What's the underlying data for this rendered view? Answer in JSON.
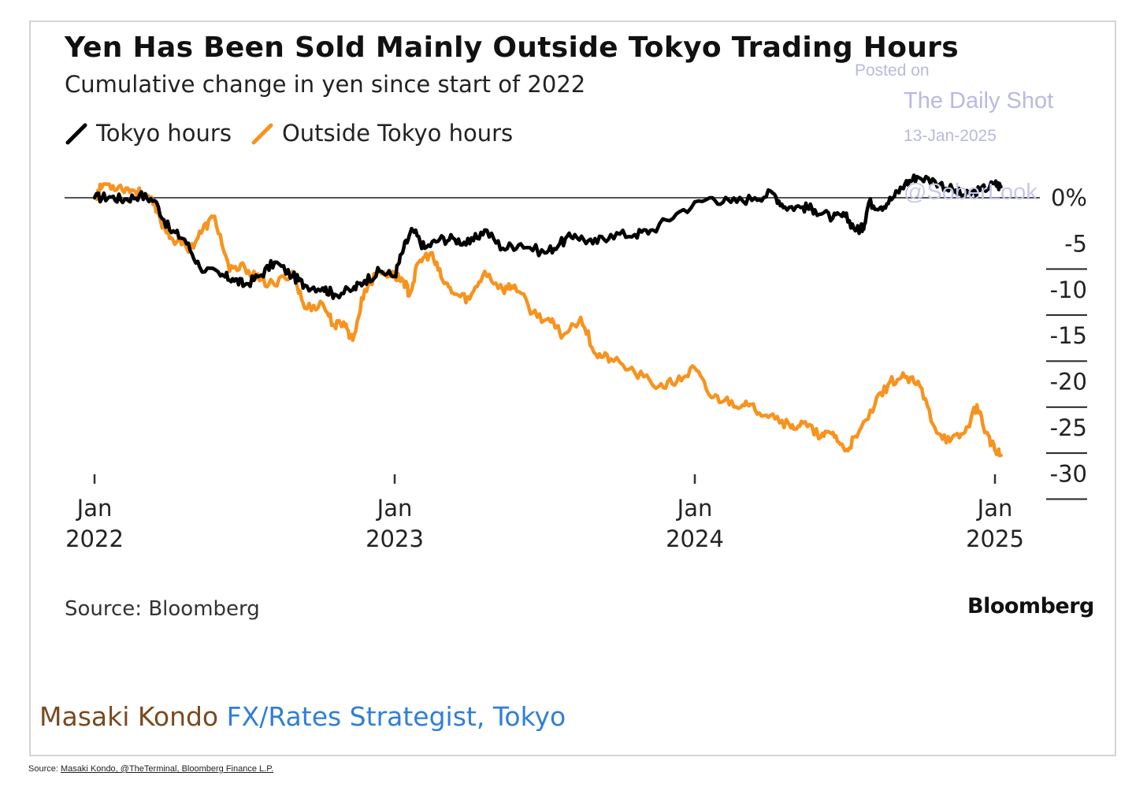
{
  "title": "Yen Has Been Sold Mainly Outside Tokyo Trading Hours",
  "subtitle": "Cumulative change in yen since start of 2022",
  "watermark": {
    "line1": "Posted on",
    "line2": "The Daily Shot",
    "line3": "13-Jan-2025",
    "line4": "@SoberLook"
  },
  "source_text": "Source: Bloomberg",
  "brand": "Bloomberg",
  "author": {
    "name": "Masaki Kondo",
    "role": "FX/Rates Strategist, Tokyo"
  },
  "credit": {
    "prefix": "Source: ",
    "link": "Masaki Kondo, @TheTerminal, Bloomberg Finance L.P."
  },
  "colors": {
    "tokyo": "#000000",
    "outside": "#f7931e",
    "zero_line": "#555555"
  },
  "chart_data": {
    "type": "line",
    "title": "Yen Has Been Sold Mainly Outside Tokyo Trading Hours",
    "subtitle": "Cumulative change in yen since start of 2022",
    "ylabel": "%",
    "ylim": [
      -32.5,
      2.5
    ],
    "xlim": [
      2022.0,
      2025.05
    ],
    "legend_position": "top-left",
    "grid": false,
    "yticks": [
      {
        "value": 0,
        "label": "0%"
      },
      {
        "value": -5,
        "label": "-5"
      },
      {
        "value": -10,
        "label": "-10"
      },
      {
        "value": -15,
        "label": "-15"
      },
      {
        "value": -20,
        "label": "-20"
      },
      {
        "value": -25,
        "label": "-25"
      },
      {
        "value": -30,
        "label": "-30"
      }
    ],
    "xticks": [
      {
        "value": 2022.0,
        "label_month": "Jan",
        "label_year": "2022"
      },
      {
        "value": 2023.0,
        "label_month": "Jan",
        "label_year": "2023"
      },
      {
        "value": 2024.0,
        "label_month": "Jan",
        "label_year": "2024"
      },
      {
        "value": 2025.0,
        "label_month": "Jan",
        "label_year": "2025"
      }
    ],
    "series": [
      {
        "name": "Tokyo hours",
        "color": "#000000",
        "x": [
          2022.0,
          2022.05,
          2022.1,
          2022.15,
          2022.2,
          2022.25,
          2022.3,
          2022.35,
          2022.42,
          2022.46,
          2022.5,
          2022.55,
          2022.6,
          2022.66,
          2022.7,
          2022.76,
          2022.8,
          2022.86,
          2022.9,
          2022.95,
          2023.0,
          2023.03,
          2023.06,
          2023.1,
          2023.15,
          2023.2,
          2023.25,
          2023.3,
          2023.36,
          2023.42,
          2023.5,
          2023.55,
          2023.6,
          2023.66,
          2023.72,
          2023.8,
          2023.86,
          2023.95,
          2024.05,
          2024.12,
          2024.2,
          2024.26,
          2024.3,
          2024.36,
          2024.4,
          2024.46,
          2024.5,
          2024.54,
          2024.56,
          2024.58,
          2024.62,
          2024.66,
          2024.7,
          2024.74,
          2024.8,
          2024.86,
          2024.9,
          2024.95,
          2025.0,
          2025.02
        ],
        "y": [
          0,
          0.1,
          -0.2,
          0.3,
          -0.3,
          -3.5,
          -4.5,
          -7.5,
          -8.5,
          -8.8,
          -9.5,
          -8.5,
          -7,
          -8.5,
          -9.5,
          -9.8,
          -10.5,
          -10,
          -9,
          -8,
          -8.5,
          -5.5,
          -3.5,
          -5.5,
          -4.5,
          -4.5,
          -5,
          -3.5,
          -5.5,
          -5,
          -6,
          -5,
          -4,
          -5,
          -4,
          -4,
          -3.5,
          -1.5,
          0,
          -0.5,
          0,
          0.5,
          -1,
          -1,
          -1.3,
          -2.2,
          -2,
          -3.5,
          -3.3,
          -0.5,
          -1,
          0,
          1.5,
          2.3,
          1.8,
          0.8,
          0.2,
          0.8,
          1.5,
          1.2
        ]
      },
      {
        "name": "Outside Tokyo hours",
        "color": "#f7931e",
        "x": [
          2022.0,
          2022.03,
          2022.08,
          2022.13,
          2022.18,
          2022.22,
          2022.26,
          2022.32,
          2022.36,
          2022.4,
          2022.45,
          2022.5,
          2022.55,
          2022.6,
          2022.66,
          2022.7,
          2022.76,
          2022.8,
          2022.83,
          2022.86,
          2022.9,
          2022.95,
          2023.0,
          2023.03,
          2023.05,
          2023.08,
          2023.12,
          2023.16,
          2023.2,
          2023.25,
          2023.3,
          2023.36,
          2023.4,
          2023.46,
          2023.52,
          2023.56,
          2023.62,
          2023.67,
          2023.72,
          2023.8,
          2023.88,
          2023.94,
          2024.0,
          2024.05,
          2024.1,
          2024.16,
          2024.2,
          2024.26,
          2024.32,
          2024.36,
          2024.42,
          2024.46,
          2024.5,
          2024.54,
          2024.6,
          2024.65,
          2024.7,
          2024.75,
          2024.8,
          2024.85,
          2024.9,
          2024.94,
          2024.97,
          2025.0,
          2025.02
        ],
        "y": [
          0,
          1.5,
          1.2,
          0.8,
          0.2,
          -2.5,
          -4.5,
          -5.5,
          -3.5,
          -2,
          -8,
          -7.5,
          -9,
          -9.5,
          -8,
          -12,
          -11.5,
          -14,
          -13.5,
          -15.5,
          -10,
          -8,
          -8.5,
          -9,
          -10.5,
          -7,
          -6,
          -9,
          -10.5,
          -11,
          -8,
          -10,
          -9.5,
          -12.5,
          -13.5,
          -15,
          -13,
          -17,
          -17.5,
          -19,
          -20.5,
          -20,
          -18.5,
          -21.5,
          -22,
          -22.5,
          -23,
          -23.5,
          -25,
          -24.5,
          -26,
          -25.5,
          -27.5,
          -26,
          -22.5,
          -20,
          -19.5,
          -20.5,
          -25,
          -26.5,
          -25.5,
          -22.5,
          -25.5,
          -27.5,
          -28
        ]
      }
    ]
  }
}
